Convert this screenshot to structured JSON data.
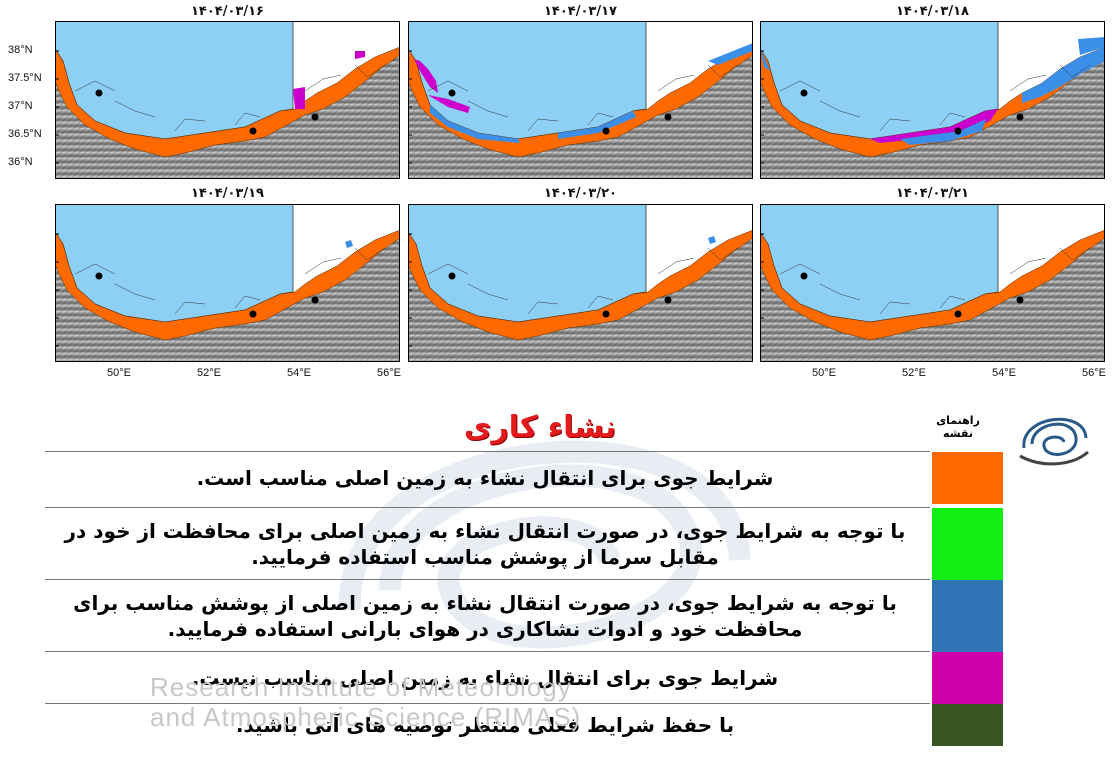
{
  "panels": [
    {
      "date": "۱۴۰۴/۰۳/۱۶",
      "variant": 0
    },
    {
      "date": "۱۴۰۴/۰۳/۱۷",
      "variant": 1
    },
    {
      "date": "۱۴۰۴/۰۳/۱۸",
      "variant": 2
    },
    {
      "date": "۱۴۰۴/۰۳/۱۹",
      "variant": 3
    },
    {
      "date": "۱۴۰۴/۰۳/۲۰",
      "variant": 4
    },
    {
      "date": "۱۴۰۴/۰۳/۲۱",
      "variant": 5
    }
  ],
  "y_ticks": [
    "38°N",
    "37.5°N",
    "37°N",
    "36.5°N",
    "36°N"
  ],
  "x_ticks": [
    "50°E",
    "52°E",
    "54°E",
    "56°E"
  ],
  "legend": {
    "title": "نشاء کاری",
    "head": "راهنمای نقشه",
    "items": [
      {
        "text": "شرایط جوی برای انتقال نشاء به زمین اصلی مناسب است.",
        "color": "#ff6a00"
      },
      {
        "text": "با توجه به شرایط جوی، در صورت انتقال نشاء به زمین اصلی برای محافظت از خود  در مقابل سرما از پوشش مناسب استفاده فرمایید.",
        "color": "#11ee11"
      },
      {
        "text": "با توجه به شرایط جوی، در صورت انتقال نشاء به زمین اصلی از پوشش مناسب برای محافظت خود و ادوات نشاکاری در هوای بارانی استفاده فرمایید.",
        "color": "#2f74b5"
      },
      {
        "text": "شرایط جوی برای انتقال نشاء به زمین اصلی مناسب نیست.",
        "color": "#d000a8"
      },
      {
        "text": "با حفظ شرایط فعلی منتظر توصیه های آتی باشید.",
        "color": "#375623"
      }
    ]
  },
  "watermark": {
    "line1": "Research Institute of Meteorology",
    "line2": "and Atmospheric Science (RIMAS)"
  },
  "colors": {
    "sea": "#8ecff5",
    "land_suitable": "#ff6a00",
    "terrain": "#9a9a9a"
  }
}
